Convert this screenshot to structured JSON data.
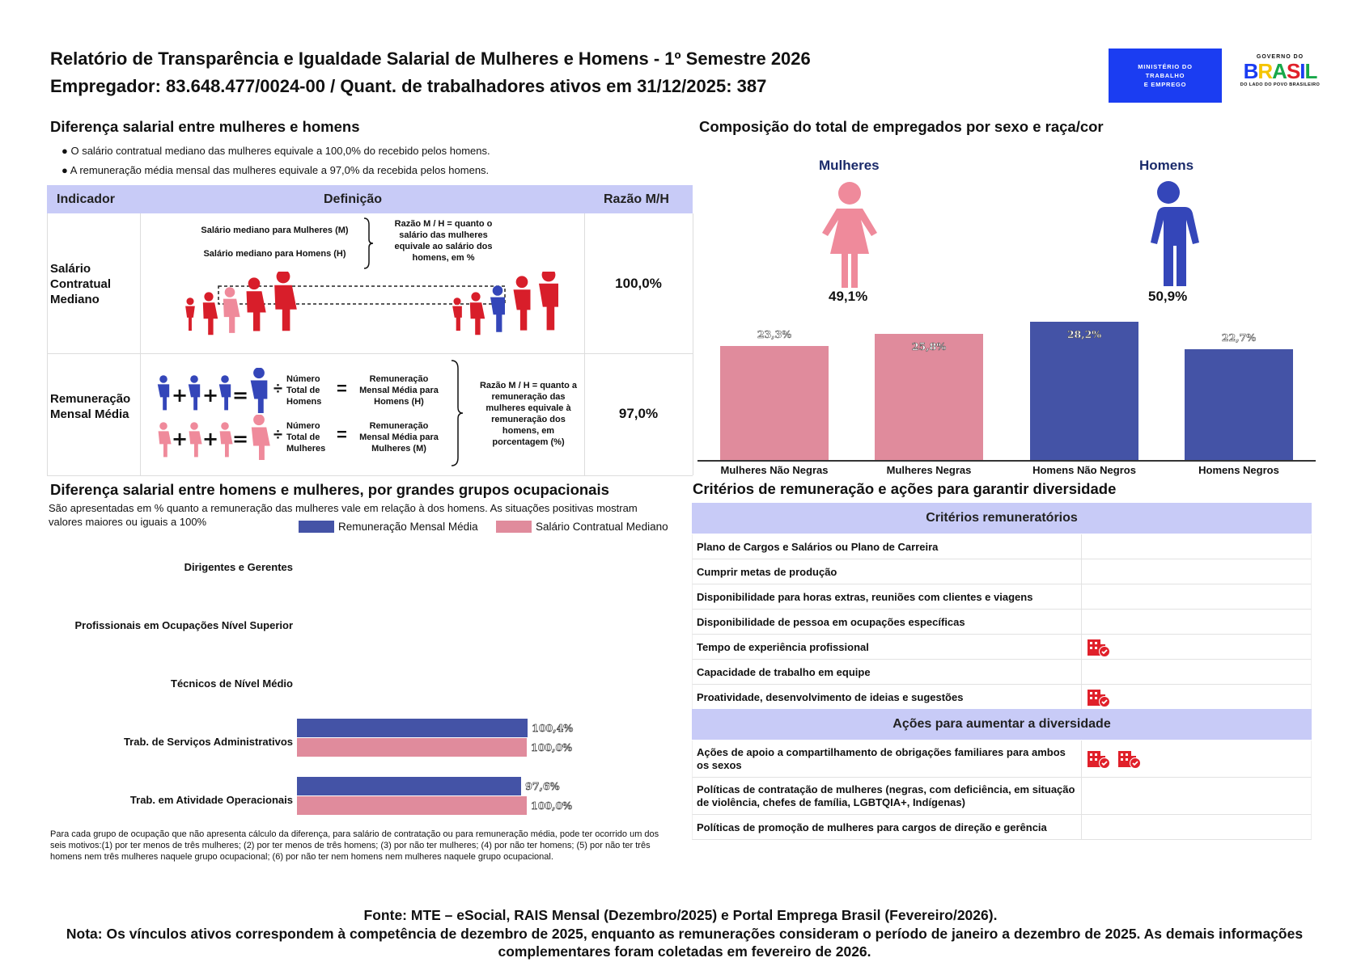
{
  "header": {
    "title": "Relatório de Transparência e Igualdade Salarial de Mulheres e Homens - 1º Semestre 2026",
    "subtitle": "Empregador: 83.648.477/0024-00 / Quant. de trabalhadores ativos em 31/12/2025: 387",
    "ministry_logo": [
      "MINISTÉRIO DO",
      "TRABALHO",
      "E EMPREGO"
    ],
    "gov_logo_top": "GOVERNO DO",
    "gov_logo_word": "BRASIL",
    "gov_logo_bottom": "DO LADO DO POVO BRASILEIRO",
    "colors": {
      "ministry_bg": "#1b3df2"
    }
  },
  "diff": {
    "title": "Diferença salarial entre mulheres e homens",
    "bullets": [
      "O salário contratual mediano das mulheres equivale a 100,0% do recebido pelos homens.",
      "A remuneração média mensal das mulheres equivale a 97,0% da recebida pelos homens."
    ],
    "table": {
      "headers": [
        "Indicador",
        "Definição",
        "Razão M/H"
      ],
      "rows": [
        {
          "indicator": "Salário Contratual Mediano",
          "value": "100,0%",
          "def_label_m": "Salário mediano para Mulheres (M)",
          "def_label_h": "Salário mediano para Homens (H)",
          "def_ratio": "Razão M / H = quanto o salário das mulheres equivale ao salário dos homens, em %"
        },
        {
          "indicator": "Remuneração Mensal Média",
          "value": "97,0%",
          "num_h": "Número Total de Homens",
          "num_m": "Número Total de Mulheres",
          "rem_h": "Remuneração Mensal Média para Homens (H)",
          "rem_m": "Remuneração Mensal Média para Mulheres (M)",
          "def_ratio": "Razão M / H = quanto a remuneração das mulheres equivale à remuneração dos homens, em porcentagem (%)"
        }
      ]
    }
  },
  "composition": {
    "title": "Composição do total de empregados por sexo e raça/cor",
    "women_label": "Mulheres",
    "men_label": "Homens",
    "women_pct": "49,1%",
    "men_pct": "50,9%",
    "colors": {
      "women": "#e08b9c",
      "men": "#4453a6",
      "women_icon": "#ef8a9b",
      "men_icon": "#3446b9"
    },
    "chart_data": {
      "type": "bar",
      "categories": [
        "Mulheres Não Negras",
        "Mulheres Negras",
        "Homens Não Negros",
        "Homens Negros"
      ],
      "values": [
        23.3,
        25.8,
        28.2,
        22.7
      ],
      "labels": [
        "23,3%",
        "25,8%",
        "28,2%",
        "22,7%"
      ]
    }
  },
  "occupational": {
    "title": "Diferença salarial entre homens e mulheres, por grandes grupos ocupacionais",
    "description": "São apresentadas em % quanto a remuneração das mulheres vale em relação à dos homens. As situações positivas mostram valores maiores ou iguais a 100%",
    "legend": [
      "Remuneração Mensal Média",
      "Salário Contratual Mediano"
    ],
    "chart_data": {
      "type": "bar",
      "orientation": "horizontal",
      "categories": [
        "Dirigentes e Gerentes",
        "Profissionais em Ocupações Nível Superior",
        "Técnicos de Nível Médio",
        "Trab. de Serviços Administrativos",
        "Trab. em Atividade Operacionais"
      ],
      "series": [
        {
          "name": "Remuneração Mensal Média",
          "values": [
            null,
            null,
            null,
            100.4,
            97.6
          ],
          "labels": [
            "",
            "",
            "",
            "100,4%",
            "97,6%"
          ],
          "color": "#4453a6"
        },
        {
          "name": "Salário Contratual Mediano",
          "values": [
            null,
            null,
            null,
            100.0,
            100.0
          ],
          "labels": [
            "",
            "",
            "",
            "100,0%",
            "100,0%"
          ],
          "color": "#e08b9c"
        }
      ]
    },
    "footnote": "Para cada grupo de ocupação que não apresenta cálculo da diferença, para salário de contratação ou para remuneração média, pode ter ocorrido um dos seis motivos:(1) por ter menos de três mulheres; (2) por ter menos de três homens; (3) por não ter mulheres; (4) por não ter homens; (5) por não ter três homens nem três mulheres naquele grupo ocupacional; (6) por não ter nem homens nem mulheres naquele grupo ocupacional."
  },
  "criteria": {
    "title": "Critérios de remuneração e ações para garantir diversidade",
    "header1": "Critérios remuneratórios",
    "items1": [
      {
        "label": "Plano de Cargos e Salários ou Plano de Carreira",
        "icons": 0
      },
      {
        "label": "Cumprir metas de produção",
        "icons": 0
      },
      {
        "label": "Disponibilidade para horas extras, reuniões com clientes e viagens",
        "icons": 0
      },
      {
        "label": "Disponibilidade de pessoa em ocupações específicas",
        "icons": 0
      },
      {
        "label": "Tempo de experiência profissional",
        "icons": 1
      },
      {
        "label": "Capacidade de trabalho em equipe",
        "icons": 0
      },
      {
        "label": "Proatividade, desenvolvimento de ideias e sugestões",
        "icons": 1
      }
    ],
    "header2": "Ações para aumentar a diversidade",
    "items2": [
      {
        "label": "Ações de apoio a compartilhamento de obrigações familiares para ambos os sexos",
        "icons": 2
      },
      {
        "label": "Políticas de contratação de mulheres (negras, com deficiência, em situação de violência, chefes de família, LGBTQIA+, Indígenas)",
        "icons": 0
      },
      {
        "label": "Políticas de promoção de mulheres para cargos de direção e gerência",
        "icons": 0
      }
    ],
    "icon_name": "company-check-icon",
    "icon_color": "#e0202a"
  },
  "footer": {
    "source": "Fonte: MTE – eSocial, RAIS Mensal (Dezembro/2025) e Portal Emprega Brasil (Fevereiro/2026).",
    "note": "Nota: Os vínculos ativos correspondem à competência de dezembro de 2025, enquanto as remunerações consideram o período de janeiro a dezembro de 2025. As demais informações complementares foram coletadas em fevereiro de 2026."
  }
}
